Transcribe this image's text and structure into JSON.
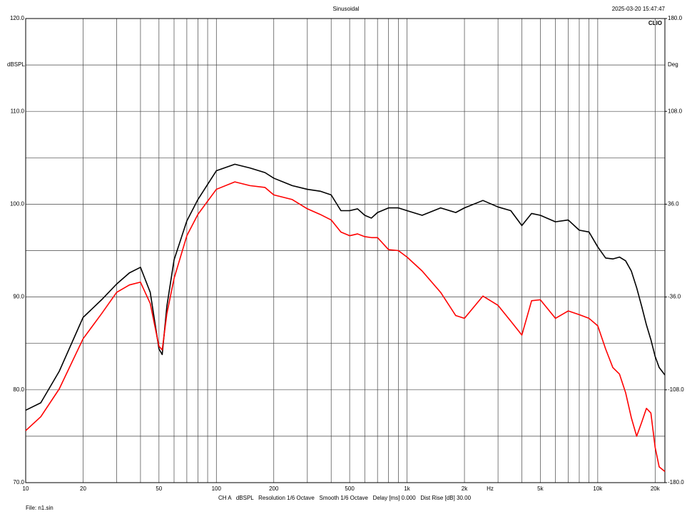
{
  "chart_data": {
    "type": "line",
    "title": "Sinusoidal",
    "timestamp": "2025-03-20 15:47:47",
    "logo": "CLIO",
    "y_label": "dBSPL",
    "y2_label": "Deg",
    "x_label": "Hz",
    "footer": "CH A   dBSPL   Resolution 1/6 Octave   Smooth 1/6 Octave   Delay [ms] 0.000   Dist Rise [dB] 30.00",
    "file": "File: n1.sin",
    "x_log": true,
    "grid": true,
    "xlim": [
      10,
      22500
    ],
    "ylim": [
      70,
      120
    ],
    "y2lim": [
      -180,
      180
    ],
    "xticks": [
      10,
      20,
      {
        "value": 30,
        "label": null
      },
      {
        "value": 40,
        "label": null
      },
      50,
      {
        "value": 60,
        "label": null
      },
      {
        "value": 70,
        "label": null
      },
      {
        "value": 80,
        "label": null
      },
      {
        "value": 90,
        "label": null
      },
      100,
      200,
      {
        "value": 300,
        "label": null
      },
      {
        "value": 400,
        "label": null
      },
      500,
      {
        "value": 600,
        "label": null
      },
      {
        "value": 700,
        "label": null
      },
      {
        "value": 800,
        "label": null
      },
      {
        "value": 900,
        "label": null
      },
      {
        "value": 1000,
        "label": "1k"
      },
      {
        "value": 2000,
        "label": "2k"
      },
      {
        "value": 3000,
        "label": null
      },
      {
        "value": 4000,
        "label": null
      },
      {
        "value": 5000,
        "label": "5k"
      },
      {
        "value": 6000,
        "label": null
      },
      {
        "value": 7000,
        "label": null
      },
      {
        "value": 8000,
        "label": null
      },
      {
        "value": 9000,
        "label": null
      },
      {
        "value": 10000,
        "label": "10k"
      },
      {
        "value": 20000,
        "label": "20k"
      }
    ],
    "yticks": [
      {
        "value": 70,
        "label": "70.0"
      },
      {
        "value": 75,
        "label": null
      },
      {
        "value": 80,
        "label": "80.0"
      },
      {
        "value": 85,
        "label": null
      },
      {
        "value": 90,
        "label": "90.0"
      },
      {
        "value": 95,
        "label": null
      },
      {
        "value": 100,
        "label": "100.0"
      },
      {
        "value": 105,
        "label": null
      },
      {
        "value": 110,
        "label": "110.0"
      },
      {
        "value": 115,
        "label": null
      },
      {
        "value": 120,
        "label": "120.0"
      }
    ],
    "y2ticks": [
      {
        "value": -180,
        "label": "-180.0"
      },
      {
        "value": -108,
        "label": "-108.0"
      },
      {
        "value": -36,
        "label": "-36.0"
      },
      {
        "value": 36,
        "label": "36.0"
      },
      {
        "value": 108,
        "label": "108.0"
      },
      {
        "value": 180,
        "label": "180.0"
      }
    ],
    "x": [
      10,
      12,
      15,
      20,
      25,
      30,
      35,
      40,
      45,
      50,
      52,
      55,
      60,
      70,
      80,
      100,
      125,
      150,
      180,
      200,
      250,
      300,
      350,
      400,
      450,
      500,
      550,
      600,
      650,
      700,
      800,
      900,
      1000,
      1200,
      1500,
      1800,
      2000,
      2500,
      3000,
      3500,
      4000,
      4500,
      5000,
      6000,
      7000,
      8000,
      9000,
      10000,
      11000,
      12000,
      13000,
      14000,
      15000,
      16000,
      17000,
      18000,
      19000,
      20000,
      21000,
      22500
    ],
    "series": [
      {
        "name": "black",
        "color": "#000000",
        "values": [
          77.8,
          78.6,
          82.0,
          87.8,
          89.7,
          91.4,
          92.6,
          93.2,
          90.5,
          84.4,
          83.8,
          89.0,
          94.0,
          98.2,
          100.5,
          103.6,
          104.3,
          103.9,
          103.4,
          102.8,
          102.0,
          101.6,
          101.4,
          101.0,
          99.3,
          99.3,
          99.5,
          98.8,
          98.5,
          99.1,
          99.6,
          99.6,
          99.3,
          98.8,
          99.6,
          99.1,
          99.6,
          100.4,
          99.7,
          99.3,
          97.7,
          99.0,
          98.8,
          98.1,
          98.3,
          97.2,
          97.0,
          95.4,
          94.2,
          94.1,
          94.3,
          93.9,
          92.8,
          91.0,
          89.0,
          87.0,
          85.4,
          83.6,
          82.4,
          81.6
        ]
      },
      {
        "name": "red",
        "color": "#ff0000",
        "values": [
          75.6,
          77.1,
          80.1,
          85.5,
          88.2,
          90.5,
          91.3,
          91.6,
          89.3,
          84.7,
          84.3,
          88.2,
          92.0,
          96.6,
          98.9,
          101.6,
          102.4,
          102.0,
          101.8,
          101.0,
          100.5,
          99.5,
          98.9,
          98.3,
          97.0,
          96.6,
          96.8,
          96.5,
          96.4,
          96.4,
          95.1,
          95.0,
          94.3,
          92.8,
          90.5,
          88.0,
          87.7,
          90.1,
          89.1,
          87.4,
          85.9,
          89.6,
          89.7,
          87.7,
          88.5,
          88.1,
          87.7,
          86.9,
          84.4,
          82.4,
          81.7,
          79.7,
          77.0,
          75.0,
          76.5,
          78.0,
          77.5,
          73.8,
          71.7,
          71.2
        ]
      }
    ]
  }
}
